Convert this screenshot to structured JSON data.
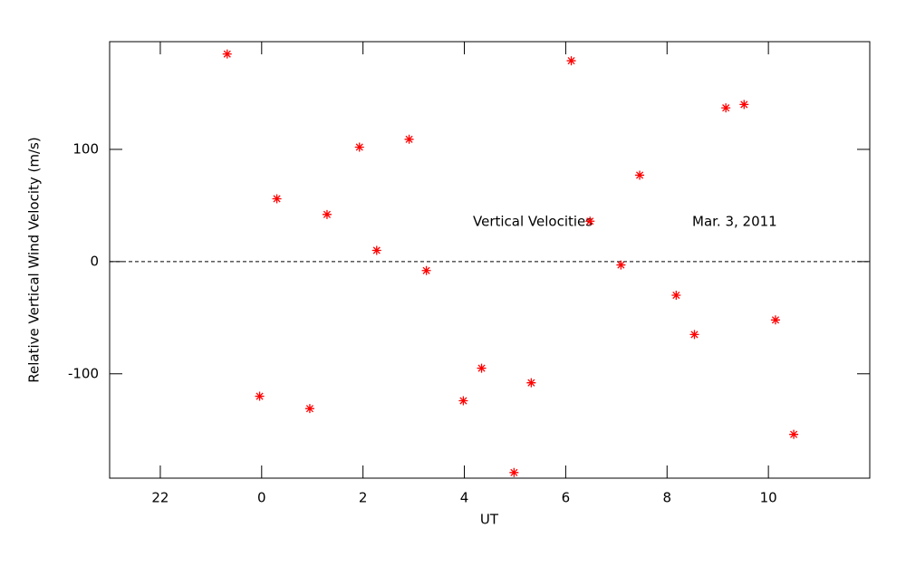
{
  "chart_data": {
    "type": "scatter",
    "title": "Vertical Velocities",
    "annotation": "Mar. 3, 2011",
    "xlabel": "UT",
    "ylabel": "Relative Vertical Wind Velocity (m/s)",
    "x": [
      -0.68,
      -0.04,
      0.3,
      0.95,
      1.29,
      1.93,
      2.27,
      2.91,
      3.25,
      3.98,
      4.34,
      4.98,
      5.32,
      6.11,
      6.48,
      7.09,
      7.46,
      8.18,
      8.54,
      9.16,
      9.52,
      10.14,
      10.5
    ],
    "values": [
      185,
      -120,
      56,
      -131,
      42,
      102,
      10,
      109,
      -8,
      -124,
      -95,
      -188,
      -108,
      179,
      36,
      -3,
      77,
      -30,
      -65,
      137,
      140,
      -52,
      -154
    ],
    "color": "#ff0000",
    "xlim": [
      -3,
      12
    ],
    "ylim": [
      -193,
      196
    ],
    "xticks": [
      {
        "value": -2,
        "label": "22"
      },
      0,
      2,
      4,
      6,
      8,
      10
    ],
    "yticks": [
      -100,
      0,
      100
    ],
    "hline": 0
  }
}
